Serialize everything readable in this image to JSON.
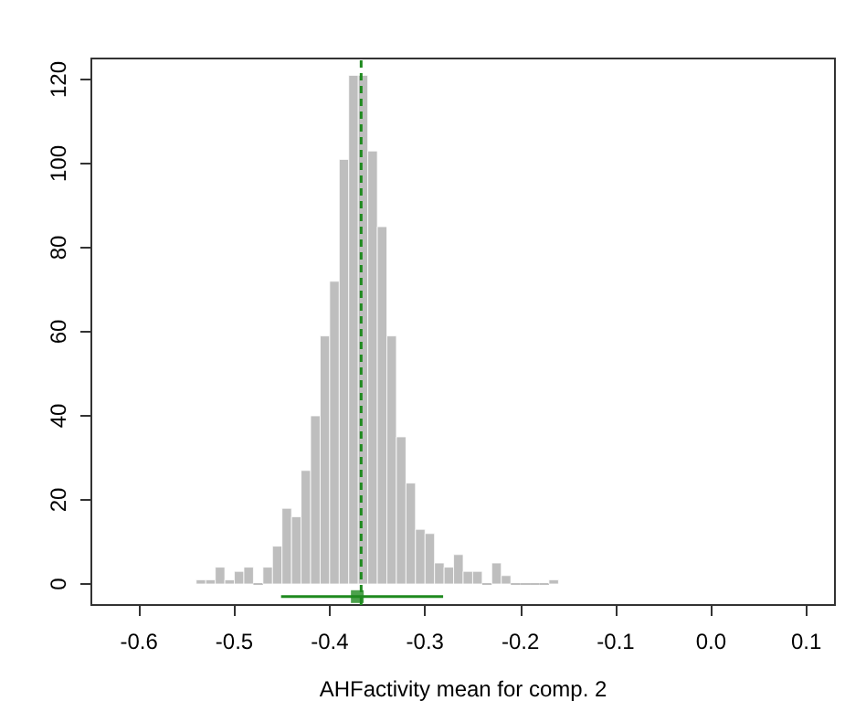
{
  "chart_data": {
    "type": "histogram",
    "xlabel": "AHFactivity mean for comp. 2",
    "bins": [
      -0.54,
      -0.53,
      -0.52,
      -0.51,
      -0.5,
      -0.49,
      -0.48,
      -0.47,
      -0.46,
      -0.45,
      -0.44,
      -0.43,
      -0.42,
      -0.41,
      -0.4,
      -0.39,
      -0.38,
      -0.37,
      -0.36,
      -0.35,
      -0.34,
      -0.33,
      -0.32,
      -0.31,
      -0.3,
      -0.29,
      -0.28,
      -0.27,
      -0.26,
      -0.25,
      -0.24,
      -0.23,
      -0.22,
      -0.21,
      -0.2,
      -0.19,
      -0.18,
      -0.17,
      -0.16
    ],
    "series": [
      {
        "color": "#bebebe",
        "values": [
          1,
          1,
          4,
          1,
          3,
          4,
          0,
          4,
          9,
          18,
          16,
          27,
          40,
          59,
          72,
          101,
          121,
          121,
          103,
          85,
          59,
          35,
          24,
          13,
          12,
          5,
          4,
          7,
          3,
          3,
          0,
          5,
          2,
          0,
          0,
          0,
          0,
          1
        ]
      },
      {
        "type": "scatter",
        "color": "#1f8a1f",
        "marker": "square",
        "x": [
          -0.371
        ],
        "values": [
          -3
        ],
        "xerrors": [
          [
            -0.451,
            -0.281
          ]
        ]
      }
    ],
    "xlim": [
      -0.65,
      0.13
    ],
    "xticks": [
      -0.6,
      -0.5,
      -0.4,
      -0.3,
      -0.2,
      -0.1,
      {
        "value": 0,
        "label": "0.0"
      },
      0.1
    ],
    "ylim": [
      -5,
      125
    ],
    "yticks": [
      0,
      20,
      40,
      60,
      80,
      100,
      120
    ],
    "ref_lines": [
      {
        "axis": "x",
        "value": -0.367,
        "color": "#1f8a1f",
        "line_style": "dashed"
      }
    ],
    "grid": false
  }
}
